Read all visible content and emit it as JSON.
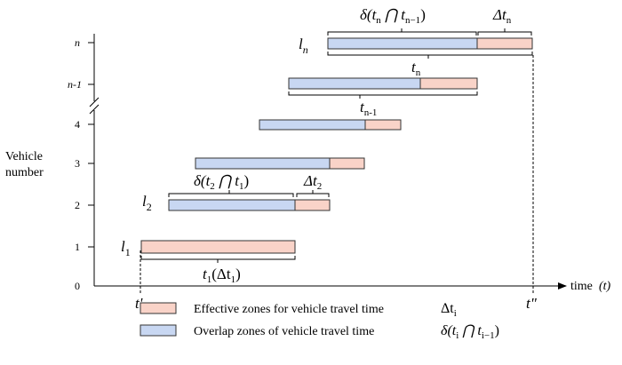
{
  "axes": {
    "y_label_line1": "Vehicle",
    "y_label_line2": "number",
    "x_label": "time",
    "x_label_var": "(t)",
    "y_ticks": [
      "0",
      "1",
      "2",
      "3",
      "4",
      "n-1",
      "n"
    ],
    "t_prime": "t'",
    "t_double_prime": "t\""
  },
  "vehicles": {
    "l1": {
      "letter": "l",
      "sub": "1"
    },
    "l2": {
      "letter": "l",
      "sub": "2"
    },
    "ln": {
      "letter": "l",
      "sub": "n"
    }
  },
  "annotations": {
    "t1": {
      "main": "t",
      "sub": "1",
      "paren": "(Δt",
      "paren_sub": "1",
      "close": ")"
    },
    "delta_t2t1": {
      "prefix": "δ(t",
      "sub1": "2",
      "mid": " ⋂ t",
      "sub2": "1",
      "close": ")"
    },
    "dt2": {
      "main": "Δt",
      "sub": "2"
    },
    "tn1": {
      "main": "t",
      "sub": "n-1"
    },
    "tn": {
      "main": "t",
      "sub": "n"
    },
    "delta_tn": {
      "prefix": "δ(t",
      "sub1": "n",
      "mid": " ⋂ t",
      "sub2": "n−1",
      "close": ")"
    },
    "dtn": {
      "main": "Δt",
      "sub": "n"
    }
  },
  "legend": {
    "effective_label": "Effective zones for vehicle travel time",
    "effective_symbol": "Δt",
    "effective_symbol_sub": "i",
    "overlap_label": "Overlap zones of vehicle travel time",
    "overlap_symbol_prefix": "δ(t",
    "overlap_symbol_sub1": "i",
    "overlap_symbol_mid": " ⋂ t",
    "overlap_symbol_sub2": "i−1",
    "overlap_symbol_close": ")"
  },
  "colors": {
    "effective": "#f9d3c8",
    "overlap": "#c8d7f2",
    "outline": "#333333"
  }
}
